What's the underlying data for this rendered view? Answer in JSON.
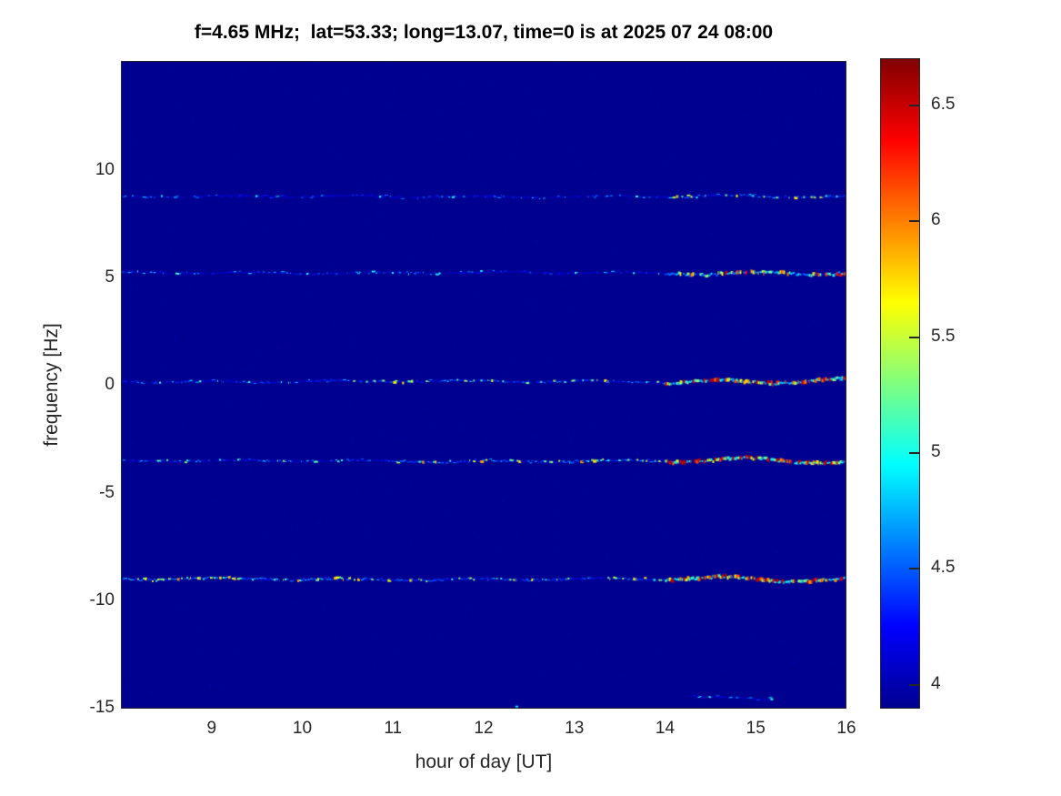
{
  "figure": {
    "title": "f=4.65 MHz;  lat=53.33; long=13.07, time=0 is at 2025 07 24 08:00"
  },
  "chart_data": {
    "type": "heatmap",
    "title": "f=4.65 MHz;  lat=53.33; long=13.07, time=0 is at 2025 07 24 08:00",
    "xlabel": "hour of day [UT]",
    "ylabel": "frequency [Hz]",
    "xlim": [
      8,
      16
    ],
    "ylim": [
      -15.04,
      15.08
    ],
    "xticks": [
      9,
      10,
      11,
      12,
      13,
      14,
      15,
      16
    ],
    "yticks": [
      10,
      5,
      0,
      -5,
      -10,
      -15
    ],
    "grid": false,
    "background_value": 3.9,
    "axis_color": "#262626",
    "plot_background": "#000090",
    "colorbar": {
      "position": "right",
      "range": [
        3.9,
        6.7
      ],
      "ticks": [
        6.5,
        6,
        5.5,
        5,
        4.5,
        4
      ],
      "colormap": "jet",
      "stops": [
        [
          0.0,
          "#000090"
        ],
        [
          0.125,
          "#0000ff"
        ],
        [
          0.375,
          "#00ffff"
        ],
        [
          0.625,
          "#ffff00"
        ],
        [
          0.875,
          "#ff0000"
        ],
        [
          1.0,
          "#800000"
        ]
      ]
    },
    "spectral_lines": [
      {
        "name": "line-8.8Hz",
        "freq": 8.8,
        "segments": [
          {
            "x0": 8.0,
            "x1": 14.0,
            "density": 0.38,
            "base": 4.22,
            "var": 0.28,
            "wave": 0.8,
            "thick": 1
          },
          {
            "x0": 14.0,
            "x1": 16.0,
            "density": 0.62,
            "base": 4.35,
            "var": 0.5,
            "wave": 1.0,
            "thick": 1
          }
        ]
      },
      {
        "name": "line-5.2Hz",
        "freq": 5.25,
        "segments": [
          {
            "x0": 8.0,
            "x1": 11.5,
            "density": 0.45,
            "base": 4.3,
            "var": 0.3,
            "wave": 0.8,
            "thick": 1
          },
          {
            "x0": 11.5,
            "x1": 14.0,
            "density": 0.38,
            "base": 4.25,
            "var": 0.3,
            "wave": 0.8,
            "thick": 1
          },
          {
            "x0": 14.0,
            "x1": 16.0,
            "density": 0.85,
            "base": 4.55,
            "var": 0.65,
            "wave": 1.6,
            "thick": 2
          }
        ]
      },
      {
        "name": "line-0.2Hz",
        "freq": 0.2,
        "segments": [
          {
            "x0": 8.0,
            "x1": 10.5,
            "density": 0.55,
            "base": 4.35,
            "var": 0.35,
            "wave": 0.9,
            "thick": 1
          },
          {
            "x0": 10.5,
            "x1": 14.0,
            "density": 0.5,
            "base": 4.35,
            "var": 0.45,
            "wave": 0.9,
            "thick": 1
          },
          {
            "x0": 14.0,
            "x1": 16.0,
            "density": 0.97,
            "base": 4.8,
            "var": 0.75,
            "wave": 2.2,
            "thick": 2
          }
        ]
      },
      {
        "name": "line-minus3.5Hz",
        "freq": -3.5,
        "segments": [
          {
            "x0": 8.0,
            "x1": 11.0,
            "density": 0.5,
            "base": 4.3,
            "var": 0.35,
            "wave": 0.8,
            "thick": 1
          },
          {
            "x0": 11.0,
            "x1": 14.0,
            "density": 0.72,
            "base": 4.45,
            "var": 0.5,
            "wave": 1.0,
            "thick": 1
          },
          {
            "x0": 14.0,
            "x1": 16.0,
            "density": 0.97,
            "base": 4.9,
            "var": 1.0,
            "wave": 2.4,
            "thick": 2
          }
        ]
      },
      {
        "name": "line-minus9Hz",
        "freq": -9.0,
        "segments": [
          {
            "x0": 8.0,
            "x1": 10.7,
            "density": 0.8,
            "base": 4.5,
            "var": 0.5,
            "wave": 1.0,
            "thick": 1
          },
          {
            "x0": 10.7,
            "x1": 14.0,
            "density": 0.6,
            "base": 4.4,
            "var": 0.45,
            "wave": 0.9,
            "thick": 1
          },
          {
            "x0": 14.0,
            "x1": 16.0,
            "density": 0.97,
            "base": 4.9,
            "var": 0.85,
            "wave": 2.2,
            "thick": 2
          }
        ]
      },
      {
        "name": "trace-minus14.5Hz",
        "freq": -14.5,
        "segments": [
          {
            "x0": 14.3,
            "x1": 15.2,
            "density": 0.45,
            "base": 4.2,
            "var": 0.35,
            "wave": 1.2,
            "thick": 1
          }
        ]
      }
    ],
    "point_features": [
      {
        "x": 12.35,
        "y": -14.9,
        "value": 4.9
      }
    ]
  }
}
